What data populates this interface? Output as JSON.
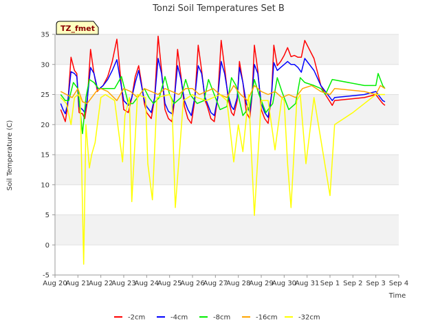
{
  "chart_data": {
    "type": "line",
    "title": "Tonzi Soil Temperatures Set B",
    "xlabel": "Time",
    "ylabel": "Soil Temperature (C)",
    "badge": "TZ_fmet",
    "ylim": [
      -5,
      35
    ],
    "xlim": [
      0,
      15
    ],
    "yticks": [
      -5,
      0,
      5,
      10,
      15,
      20,
      25,
      30,
      35
    ],
    "xticks": [
      {
        "x": 0,
        "label": "Aug 20"
      },
      {
        "x": 1,
        "label": "Aug 21"
      },
      {
        "x": 2,
        "label": "Aug 22"
      },
      {
        "x": 3,
        "label": "Aug 23"
      },
      {
        "x": 4,
        "label": "Aug 24"
      },
      {
        "x": 5,
        "label": "Aug 25"
      },
      {
        "x": 6,
        "label": "Aug 26"
      },
      {
        "x": 7,
        "label": "Aug 27"
      },
      {
        "x": 8,
        "label": "Aug 28"
      },
      {
        "x": 9,
        "label": "Aug 29"
      },
      {
        "x": 10,
        "label": "Aug 30"
      },
      {
        "x": 11,
        "label": "Aug 31"
      },
      {
        "x": 12,
        "label": "Sep 1"
      },
      {
        "x": 13,
        "label": "Sep 2"
      },
      {
        "x": 14,
        "label": "Sep 3"
      },
      {
        "x": 15,
        "label": "Sep 4"
      }
    ],
    "grid": true,
    "legend_position": "bottom",
    "series": [
      {
        "name": "-2cm",
        "color": "#ff0000",
        "x": [
          0.25,
          0.35,
          0.45,
          0.55,
          0.7,
          0.85,
          0.95,
          1.05,
          1.2,
          1.3,
          1.4,
          1.55,
          1.7,
          1.85,
          1.95,
          2.1,
          2.3,
          2.5,
          2.7,
          3.0,
          3.2,
          3.35,
          3.5,
          3.65,
          3.75,
          3.9,
          4.0,
          4.2,
          4.35,
          4.5,
          4.65,
          4.8,
          4.95,
          5.1,
          5.2,
          5.35,
          5.5,
          5.65,
          5.8,
          5.95,
          6.1,
          6.25,
          6.4,
          6.55,
          6.65,
          6.8,
          6.95,
          7.1,
          7.25,
          7.4,
          7.55,
          7.7,
          7.8,
          7.95,
          8.05,
          8.2,
          8.35,
          8.5,
          8.6,
          8.7,
          8.85,
          9.0,
          9.15,
          9.3,
          9.45,
          9.55,
          9.7,
          9.85,
          10.0,
          10.15,
          10.3,
          10.45,
          10.6,
          10.75,
          10.9,
          11.3,
          11.6,
          11.8,
          12.1,
          12.2,
          13.5,
          14.0,
          14.1,
          14.2,
          14.3,
          14.4
        ],
        "y": [
          22.5,
          21.5,
          20.5,
          23.0,
          31.2,
          29.0,
          28.5,
          22.0,
          21.8,
          21.0,
          23.5,
          32.5,
          28.5,
          25.5,
          26.0,
          26.5,
          28.0,
          30.5,
          34.2,
          22.5,
          22.0,
          24.5,
          28.0,
          29.8,
          27.5,
          23.5,
          22.0,
          21.0,
          24.5,
          34.7,
          29.0,
          22.5,
          21.0,
          20.5,
          23.5,
          32.5,
          28.0,
          23.0,
          21.0,
          20.2,
          24.0,
          33.2,
          29.0,
          24.0,
          23.0,
          21.0,
          20.5,
          24.5,
          34.0,
          29.5,
          24.5,
          22.0,
          21.5,
          24.0,
          30.5,
          27.0,
          22.0,
          21.0,
          25.0,
          33.2,
          29.0,
          22.5,
          21.0,
          20.2,
          25.0,
          33.2,
          29.8,
          30.5,
          31.5,
          32.8,
          31.3,
          31.5,
          31.2,
          31.2,
          34.0,
          31.0,
          26.5,
          25.0,
          23.2,
          24.0,
          24.5,
          25.0,
          24.5,
          24.0,
          23.5,
          23.2
        ]
      },
      {
        "name": "-4cm",
        "color": "#0000ff",
        "x": [
          0.25,
          0.35,
          0.45,
          0.55,
          0.7,
          0.85,
          0.95,
          1.05,
          1.2,
          1.3,
          1.4,
          1.55,
          1.7,
          1.85,
          1.95,
          2.1,
          2.3,
          2.5,
          2.7,
          3.0,
          3.2,
          3.35,
          3.5,
          3.65,
          3.75,
          3.9,
          4.0,
          4.2,
          4.35,
          4.5,
          4.65,
          4.8,
          4.95,
          5.1,
          5.2,
          5.35,
          5.5,
          5.65,
          5.8,
          5.95,
          6.1,
          6.25,
          6.4,
          6.55,
          6.65,
          6.8,
          6.95,
          7.1,
          7.25,
          7.4,
          7.55,
          7.7,
          7.8,
          7.95,
          8.05,
          8.2,
          8.35,
          8.5,
          8.6,
          8.7,
          8.85,
          9.0,
          9.15,
          9.3,
          9.45,
          9.55,
          9.7,
          9.85,
          10.0,
          10.15,
          10.3,
          10.45,
          10.6,
          10.75,
          10.9,
          11.3,
          11.6,
          11.8,
          12.1,
          12.2,
          13.5,
          14.0,
          14.1,
          14.2,
          14.3,
          14.4
        ],
        "y": [
          23.5,
          22.5,
          21.8,
          23.5,
          28.8,
          28.5,
          28.0,
          23.0,
          22.5,
          22.0,
          24.0,
          29.5,
          28.5,
          26.0,
          26.0,
          26.5,
          27.5,
          29.0,
          30.8,
          24.0,
          23.2,
          24.5,
          27.0,
          29.0,
          27.0,
          24.0,
          23.0,
          22.0,
          24.5,
          31.0,
          28.5,
          23.5,
          22.2,
          21.8,
          24.0,
          29.8,
          27.5,
          24.0,
          22.5,
          21.5,
          24.5,
          29.8,
          28.5,
          24.5,
          23.5,
          22.0,
          21.5,
          24.5,
          30.5,
          28.5,
          25.0,
          23.0,
          22.5,
          24.5,
          29.5,
          27.0,
          23.5,
          22.0,
          25.0,
          30.0,
          28.5,
          23.5,
          22.0,
          21.2,
          25.0,
          30.3,
          29.0,
          29.5,
          30.0,
          30.5,
          30.0,
          30.0,
          29.5,
          28.7,
          31.0,
          29.0,
          26.5,
          25.5,
          24.0,
          24.5,
          25.0,
          25.5,
          25.0,
          24.5,
          24.0,
          23.8
        ]
      },
      {
        "name": "-8cm",
        "color": "#00ee00",
        "x": [
          0.25,
          0.45,
          0.6,
          0.8,
          1.0,
          1.2,
          1.35,
          1.5,
          1.7,
          1.9,
          2.2,
          2.6,
          2.9,
          3.2,
          3.4,
          3.6,
          3.9,
          4.1,
          4.3,
          4.55,
          4.8,
          5.0,
          5.2,
          5.5,
          5.7,
          5.9,
          6.2,
          6.5,
          6.7,
          6.9,
          7.2,
          7.5,
          7.7,
          7.9,
          8.2,
          8.5,
          8.7,
          8.9,
          9.2,
          9.5,
          9.7,
          9.9,
          10.2,
          10.5,
          10.7,
          10.9,
          11.3,
          11.6,
          11.8,
          12.1,
          13.5,
          14.0,
          14.1,
          14.2,
          14.3,
          14.4
        ],
        "y": [
          25.0,
          24.0,
          24.0,
          27.0,
          26.0,
          18.5,
          24.5,
          27.5,
          27.0,
          26.0,
          26.0,
          26.0,
          28.0,
          23.5,
          23.5,
          24.5,
          26.0,
          24.5,
          23.5,
          24.5,
          28.0,
          25.0,
          23.5,
          24.5,
          27.5,
          25.0,
          23.5,
          24.0,
          27.5,
          25.5,
          22.5,
          23.0,
          27.8,
          26.5,
          21.5,
          23.0,
          27.5,
          25.0,
          22.0,
          23.5,
          27.8,
          25.5,
          22.5,
          23.5,
          27.8,
          27.0,
          26.5,
          26.0,
          25.0,
          27.5,
          26.5,
          26.5,
          28.5,
          27.5,
          26.5,
          26.0
        ]
      },
      {
        "name": "-16cm",
        "color": "#ffa500",
        "x": [
          0.25,
          0.5,
          0.75,
          1.0,
          1.2,
          1.4,
          1.6,
          1.8,
          2.0,
          2.3,
          2.7,
          3.0,
          3.3,
          3.6,
          3.9,
          4.2,
          4.5,
          4.8,
          5.1,
          5.4,
          5.7,
          6.0,
          6.3,
          6.6,
          6.9,
          7.2,
          7.5,
          7.8,
          8.1,
          8.4,
          8.7,
          9.0,
          9.3,
          9.6,
          9.9,
          10.2,
          10.5,
          10.8,
          11.2,
          11.6,
          12.0,
          12.2,
          13.5,
          14.0,
          14.2,
          14.4
        ],
        "y": [
          25.5,
          25.0,
          24.5,
          26.0,
          23.8,
          23.5,
          24.5,
          25.5,
          26.0,
          25.5,
          24.0,
          26.0,
          25.5,
          24.5,
          26.0,
          25.5,
          25.0,
          26.0,
          25.5,
          25.0,
          26.0,
          26.0,
          25.0,
          25.5,
          26.0,
          25.0,
          24.5,
          26.5,
          25.0,
          24.0,
          26.5,
          25.5,
          25.0,
          25.5,
          24.5,
          25.0,
          24.5,
          26.0,
          26.5,
          25.5,
          25.0,
          26.0,
          25.5,
          25.0,
          26.5,
          26.0
        ]
      },
      {
        "name": "-32cm",
        "color": "#ffff00",
        "x": [
          0.25,
          0.5,
          0.7,
          0.85,
          1.0,
          1.1,
          1.25,
          1.35,
          1.5,
          1.6,
          1.75,
          2.0,
          2.2,
          2.6,
          2.95,
          3.05,
          3.25,
          3.35,
          3.6,
          3.95,
          4.05,
          4.25,
          4.45,
          5.0,
          5.1,
          5.25,
          5.6,
          6.0,
          6.2,
          6.6,
          6.9,
          7.2,
          7.5,
          7.8,
          8.0,
          8.2,
          8.45,
          8.7,
          9.0,
          9.3,
          9.6,
          9.9,
          10.0,
          10.15,
          10.3,
          10.55,
          10.7,
          10.95,
          11.3,
          12.0,
          12.2,
          13.0,
          14.0,
          14.3,
          14.4
        ],
        "y": [
          24.5,
          23.5,
          20.0,
          24.5,
          25.0,
          24.5,
          -3.2,
          20.0,
          12.8,
          15.0,
          17.0,
          24.5,
          25.0,
          24.0,
          13.8,
          21.5,
          24.5,
          7.2,
          25.0,
          24.5,
          13.5,
          7.5,
          24.5,
          25.0,
          24.0,
          6.2,
          24.0,
          25.0,
          24.5,
          24.0,
          24.5,
          25.0,
          24.0,
          13.8,
          20.0,
          15.5,
          25.0,
          4.9,
          24.0,
          24.0,
          15.8,
          24.5,
          24.0,
          13.5,
          6.2,
          24.0,
          25.0,
          13.5,
          24.5,
          8.2,
          20.0,
          22.0,
          25.0,
          25.0,
          25.0
        ]
      }
    ]
  }
}
